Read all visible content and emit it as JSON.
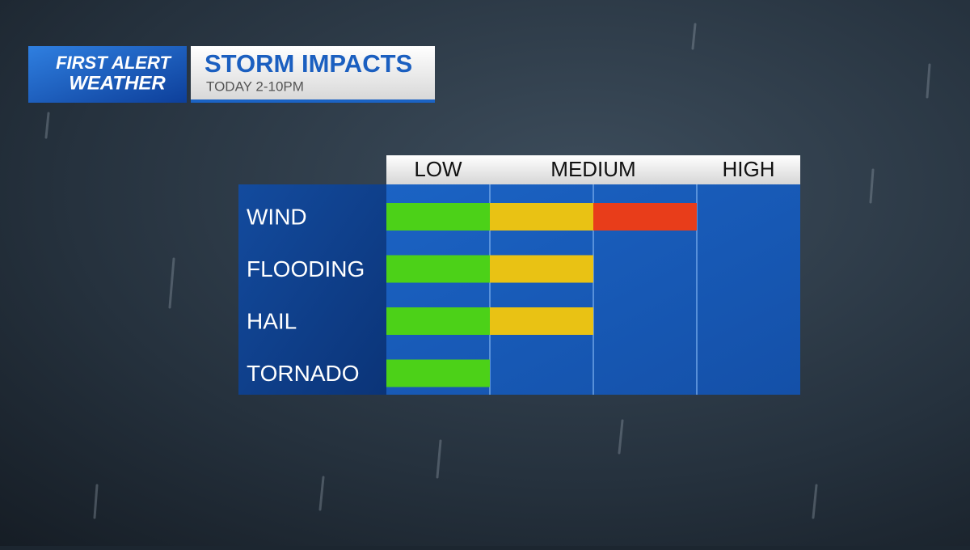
{
  "chart_data": {
    "type": "impact_bar",
    "brand": [
      "FIRST ALERT",
      "WEATHER"
    ],
    "title": "STORM IMPACTS",
    "subtitle": "TODAY 2-10PM",
    "categories": [
      "WIND",
      "FLOODING",
      "HAIL",
      "TORNADO"
    ],
    "values": [
      3,
      2,
      2,
      1
    ],
    "xlim": [
      0,
      4
    ],
    "xticks": [
      {
        "value": 0.5,
        "label": "LOW"
      },
      {
        "value": 2,
        "label": "MEDIUM"
      },
      {
        "value": 3.5,
        "label": "HIGH"
      }
    ],
    "level_colors": [
      "#4cd118",
      "#e9c214",
      "#e83d1a"
    ],
    "grid": true
  }
}
